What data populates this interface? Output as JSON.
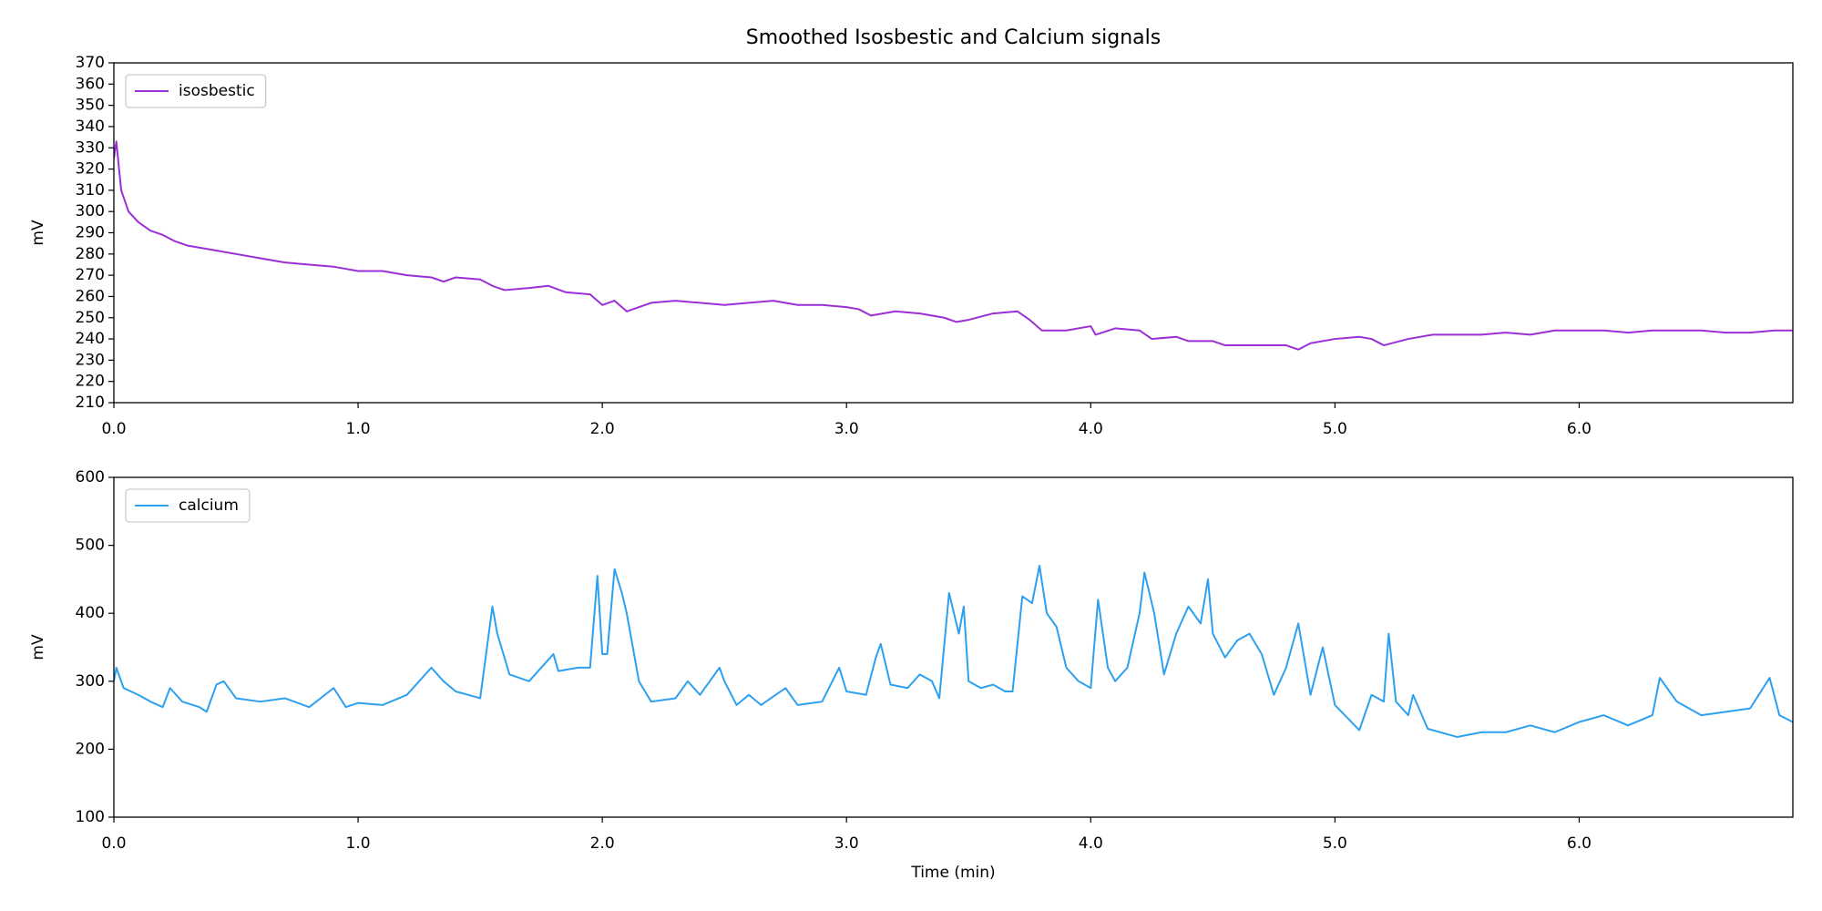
{
  "chart_data": [
    {
      "type": "line",
      "title": "Smoothed Isosbestic and Calcium signals",
      "ylabel": "mV",
      "xlim": [
        0,
        6.875
      ],
      "ylim": [
        210,
        370
      ],
      "xticks": [
        {
          "value": 0,
          "label": "0.0"
        },
        {
          "value": 1,
          "label": "1.0"
        },
        {
          "value": 2,
          "label": "2.0"
        },
        {
          "value": 3,
          "label": "3.0"
        },
        {
          "value": 4,
          "label": "4.0"
        },
        {
          "value": 5,
          "label": "5.0"
        },
        {
          "value": 6,
          "label": "6.0"
        }
      ],
      "yticks": [
        210,
        220,
        230,
        240,
        250,
        260,
        270,
        280,
        290,
        300,
        310,
        320,
        330,
        340,
        350,
        360,
        370
      ],
      "legend": "upper left",
      "series": [
        {
          "name": "isosbestic",
          "color": "#9b2fd6",
          "x": [
            0,
            0.01,
            0.03,
            0.06,
            0.1,
            0.15,
            0.2,
            0.25,
            0.3,
            0.4,
            0.5,
            0.6,
            0.7,
            0.8,
            0.9,
            1.0,
            1.1,
            1.2,
            1.3,
            1.35,
            1.4,
            1.5,
            1.55,
            1.6,
            1.7,
            1.78,
            1.85,
            1.95,
            2.0,
            2.05,
            2.1,
            2.2,
            2.3,
            2.4,
            2.5,
            2.6,
            2.7,
            2.8,
            2.9,
            3.0,
            3.05,
            3.1,
            3.2,
            3.3,
            3.4,
            3.45,
            3.5,
            3.6,
            3.7,
            3.75,
            3.8,
            3.9,
            4.0,
            4.02,
            4.1,
            4.2,
            4.25,
            4.35,
            4.4,
            4.5,
            4.55,
            4.6,
            4.7,
            4.8,
            4.85,
            4.9,
            5.0,
            5.1,
            5.15,
            5.2,
            5.3,
            5.4,
            5.5,
            5.6,
            5.7,
            5.8,
            5.9,
            6.0,
            6.1,
            6.2,
            6.3,
            6.4,
            6.5,
            6.6,
            6.7,
            6.8,
            6.875
          ],
          "values": [
            325,
            333,
            310,
            300,
            295,
            291,
            289,
            286,
            284,
            282,
            280,
            278,
            276,
            275,
            274,
            272,
            272,
            270,
            269,
            267,
            269,
            268,
            265,
            263,
            264,
            265,
            262,
            261,
            256,
            258,
            253,
            257,
            258,
            257,
            256,
            257,
            258,
            256,
            256,
            255,
            254,
            251,
            253,
            252,
            250,
            248,
            249,
            252,
            253,
            249,
            244,
            244,
            246,
            242,
            245,
            244,
            240,
            241,
            239,
            239,
            237,
            237,
            237,
            237,
            235,
            238,
            240,
            241,
            240,
            237,
            240,
            242,
            242,
            242,
            243,
            242,
            244,
            244,
            244,
            243,
            244,
            244,
            244,
            243,
            243,
            244,
            244
          ]
        }
      ]
    },
    {
      "type": "line",
      "xlabel": "Time (min)",
      "ylabel": "mV",
      "xlim": [
        0,
        6.875
      ],
      "ylim": [
        100,
        600
      ],
      "xticks": [
        {
          "value": 0,
          "label": "0.0"
        },
        {
          "value": 1,
          "label": "1.0"
        },
        {
          "value": 2,
          "label": "2.0"
        },
        {
          "value": 3,
          "label": "3.0"
        },
        {
          "value": 4,
          "label": "4.0"
        },
        {
          "value": 5,
          "label": "5.0"
        },
        {
          "value": 6,
          "label": "6.0"
        }
      ],
      "yticks": [
        100,
        200,
        300,
        400,
        500,
        600
      ],
      "legend": "upper left",
      "series": [
        {
          "name": "calcium",
          "color": "#2ea0f0",
          "x": [
            0,
            0.01,
            0.04,
            0.1,
            0.15,
            0.2,
            0.23,
            0.28,
            0.35,
            0.38,
            0.42,
            0.45,
            0.5,
            0.6,
            0.7,
            0.8,
            0.9,
            0.95,
            1.0,
            1.1,
            1.2,
            1.3,
            1.35,
            1.4,
            1.5,
            1.55,
            1.57,
            1.62,
            1.7,
            1.8,
            1.82,
            1.9,
            1.95,
            1.98,
            2.0,
            2.02,
            2.05,
            2.08,
            2.1,
            2.15,
            2.2,
            2.3,
            2.35,
            2.4,
            2.48,
            2.5,
            2.55,
            2.6,
            2.65,
            2.75,
            2.8,
            2.9,
            2.97,
            3.0,
            3.08,
            3.12,
            3.14,
            3.18,
            3.25,
            3.3,
            3.35,
            3.38,
            3.42,
            3.46,
            3.48,
            3.5,
            3.55,
            3.6,
            3.65,
            3.68,
            3.72,
            3.76,
            3.79,
            3.82,
            3.86,
            3.9,
            3.95,
            4.0,
            4.03,
            4.07,
            4.1,
            4.15,
            4.2,
            4.22,
            4.26,
            4.3,
            4.35,
            4.4,
            4.45,
            4.48,
            4.5,
            4.55,
            4.6,
            4.65,
            4.7,
            4.75,
            4.8,
            4.85,
            4.9,
            4.95,
            5.0,
            5.1,
            5.15,
            5.2,
            5.22,
            5.25,
            5.3,
            5.32,
            5.38,
            5.5,
            5.6,
            5.7,
            5.8,
            5.9,
            6.0,
            6.1,
            6.2,
            6.3,
            6.33,
            6.4,
            6.5,
            6.6,
            6.7,
            6.78,
            6.82,
            6.875
          ],
          "values": [
            300,
            320,
            290,
            280,
            270,
            262,
            290,
            270,
            262,
            255,
            295,
            300,
            275,
            270,
            275,
            262,
            290,
            262,
            268,
            265,
            280,
            320,
            300,
            285,
            275,
            410,
            370,
            310,
            300,
            340,
            315,
            320,
            320,
            455,
            340,
            340,
            465,
            430,
            400,
            300,
            270,
            275,
            300,
            280,
            320,
            300,
            265,
            280,
            265,
            290,
            265,
            270,
            320,
            285,
            280,
            335,
            355,
            295,
            290,
            310,
            300,
            275,
            430,
            370,
            410,
            300,
            290,
            295,
            285,
            285,
            425,
            415,
            470,
            400,
            380,
            320,
            300,
            290,
            420,
            320,
            300,
            320,
            400,
            460,
            400,
            310,
            370,
            410,
            385,
            450,
            370,
            335,
            360,
            370,
            340,
            280,
            320,
            385,
            280,
            350,
            265,
            228,
            280,
            270,
            370,
            270,
            250,
            280,
            230,
            218,
            225,
            225,
            235,
            225,
            240,
            250,
            235,
            250,
            305,
            270,
            250,
            255,
            260,
            305,
            250,
            240
          ]
        }
      ]
    }
  ]
}
